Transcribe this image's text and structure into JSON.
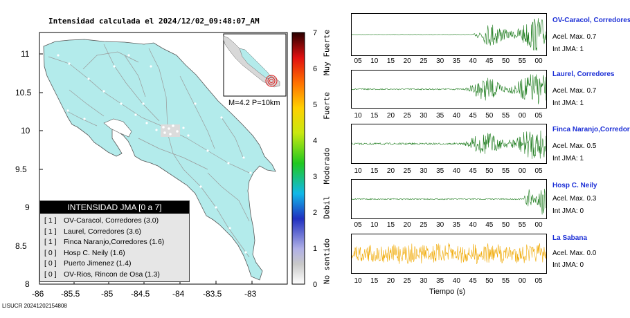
{
  "title": "Intensidad calculada el 2024/12/02_09:48:07_AM",
  "map": {
    "lat_ticks": [
      "11",
      "10.5",
      "10",
      "9.5",
      "9",
      "8.5",
      "8"
    ],
    "lon_ticks": [
      "-86",
      "-85.5",
      "-85",
      "-84.5",
      "-84",
      "-83.5",
      "-83"
    ],
    "land_color": "#b3ebeb",
    "inset_label": "M=4.2 P=10km",
    "event_marker_color": "#e02020"
  },
  "legend": {
    "title": "INTENSIDAD JMA [0 a 7]",
    "items": [
      {
        "level": "[ 1 ]",
        "text": "OV-Caracol, Corredores (3.0)"
      },
      {
        "level": "[ 1 ]",
        "text": "Laurel, Corredores (3.6)"
      },
      {
        "level": "[ 1 ]",
        "text": "Finca Naranjo,Corredores (1.6)"
      },
      {
        "level": "[ 0 ]",
        "text": "Hosp C. Neily (1.6)"
      },
      {
        "level": "[ 0 ]",
        "text": "Puerto Jimenez (1.4)"
      },
      {
        "level": "[ 0 ]",
        "text": "OV-Rios, Rincon de Osa (1.3)"
      }
    ]
  },
  "scale": {
    "numbers": [
      "7",
      "6",
      "5",
      "4",
      "3",
      "2",
      "1",
      "0"
    ],
    "words": [
      "Muy Fuerte",
      "Fuerte",
      "Moderado",
      "Debil",
      "No sentido"
    ]
  },
  "stations": [
    {
      "name": "OV-Caracol, Corredores",
      "accel": "Acel. Max. 0.7",
      "int": "Int JMA: 1",
      "color": "#1a7a1a",
      "ticks": [
        "05",
        "10",
        "15",
        "20",
        "25",
        "30",
        "35",
        "40",
        "45",
        "50",
        "55",
        "00"
      ]
    },
    {
      "name": "Laurel, Corredores",
      "accel": "Acel. Max. 0.7",
      "int": "Int JMA: 1",
      "color": "#1a7a1a",
      "ticks": [
        "10",
        "15",
        "20",
        "25",
        "30",
        "35",
        "40",
        "45",
        "50",
        "55",
        "00",
        "05"
      ]
    },
    {
      "name": "Finca Naranjo,Corredores",
      "accel": "Acel. Max. 0.5",
      "int": "Int JMA: 1",
      "color": "#1a7a1a",
      "ticks": [
        "10",
        "15",
        "20",
        "25",
        "30",
        "35",
        "40",
        "45",
        "50",
        "55",
        "00",
        "05"
      ]
    },
    {
      "name": "Hosp C. Neily",
      "accel": "Acel. Max. 0.3",
      "int": "Int JMA: 0",
      "color": "#1a7a1a",
      "ticks": [
        "05",
        "10",
        "15",
        "20",
        "25",
        "30",
        "35",
        "40",
        "45",
        "50",
        "55",
        "00"
      ]
    },
    {
      "name": "La Sabana",
      "accel": "Acel. Max. 0.0",
      "int": "Int JMA: 0",
      "color": "#f0a800",
      "ticks": [
        "10",
        "15",
        "20",
        "25",
        "30",
        "35",
        "40",
        "45",
        "50",
        "55",
        "00",
        "05"
      ]
    }
  ],
  "time_axis_label": "Tiempo (s)",
  "footer": "LISUCR 20241202154808"
}
